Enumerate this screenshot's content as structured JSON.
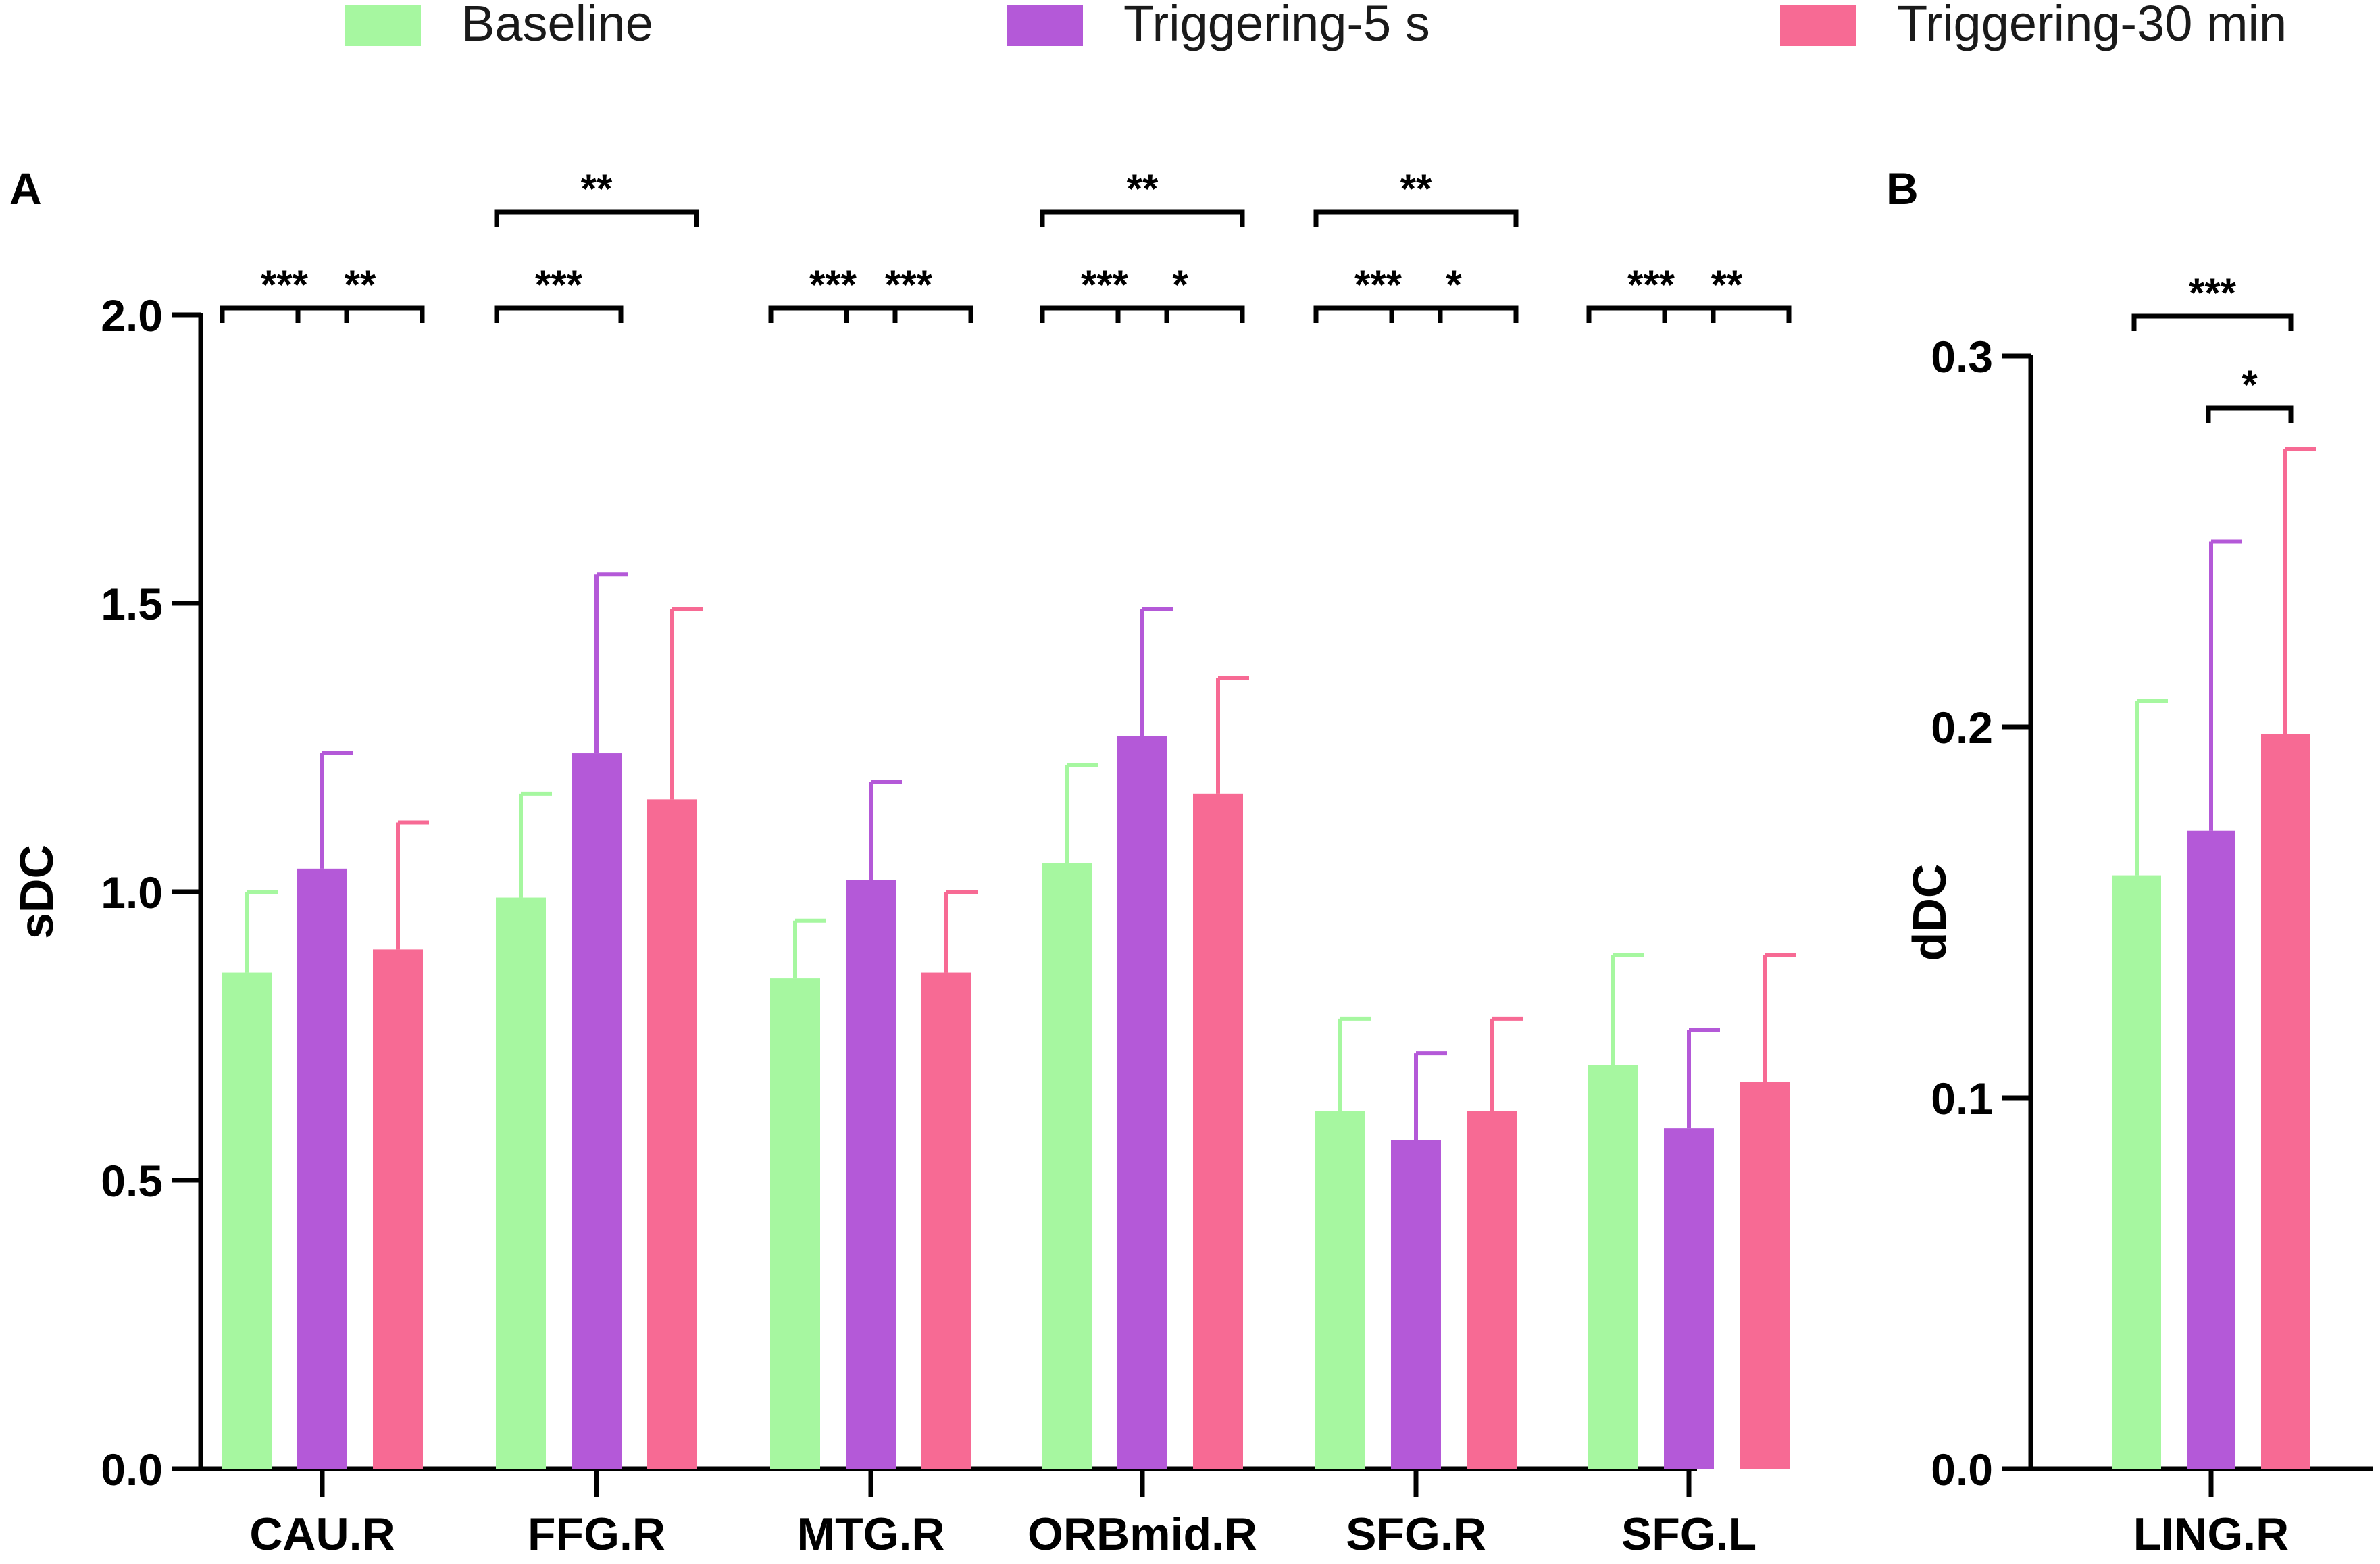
{
  "chart_data": [
    {
      "panel_label": "A",
      "type": "bar",
      "ylabel": "sDC",
      "xlabel": "",
      "ylim": [
        0,
        2.0
      ],
      "yticks": [
        0.0,
        0.5,
        1.0,
        1.5,
        2.0
      ],
      "ytick_labels": [
        "0.0",
        "0.5",
        "1.0",
        "1.5",
        "2.0"
      ],
      "categories": [
        "CAU.R",
        "FFG.R",
        "MTG.R",
        "ORBmid.R",
        "SFG.R",
        "SFG.L"
      ],
      "series": [
        {
          "name": "Baseline",
          "color": "#A6F7A0",
          "values": [
            0.86,
            0.99,
            0.85,
            1.05,
            0.62,
            0.7
          ],
          "errors": [
            0.14,
            0.18,
            0.1,
            0.17,
            0.16,
            0.19
          ]
        },
        {
          "name": "Triggering-5 s",
          "color": "#B459D8",
          "values": [
            1.04,
            1.24,
            1.02,
            1.27,
            0.57,
            0.59
          ],
          "errors": [
            0.2,
            0.31,
            0.17,
            0.22,
            0.15,
            0.17
          ]
        },
        {
          "name": "Triggering-30 min",
          "color": "#F76A94",
          "values": [
            0.9,
            1.16,
            0.86,
            1.17,
            0.62,
            0.67
          ],
          "errors": [
            0.22,
            0.33,
            0.14,
            0.2,
            0.16,
            0.22
          ]
        }
      ],
      "significance": [
        {
          "category": 0,
          "from": 0,
          "to": 1,
          "label": "***",
          "level": 0
        },
        {
          "category": 0,
          "from": 1,
          "to": 2,
          "label": "**",
          "level": 0
        },
        {
          "category": 1,
          "from": 0,
          "to": 1,
          "label": "***",
          "level": 0
        },
        {
          "category": 1,
          "from": 0,
          "to": 2,
          "label": "**",
          "level": 1
        },
        {
          "category": 2,
          "from": 0,
          "to": 1,
          "label": "***",
          "level": 0
        },
        {
          "category": 2,
          "from": 1,
          "to": 2,
          "label": "***",
          "level": 0
        },
        {
          "category": 3,
          "from": 0,
          "to": 1,
          "label": "***",
          "level": 0
        },
        {
          "category": 3,
          "from": 1,
          "to": 2,
          "label": "*",
          "level": 0
        },
        {
          "category": 3,
          "from": 0,
          "to": 2,
          "label": "**",
          "level": 1
        },
        {
          "category": 4,
          "from": 0,
          "to": 1,
          "label": "***",
          "level": 0
        },
        {
          "category": 4,
          "from": 1,
          "to": 2,
          "label": "*",
          "level": 0
        },
        {
          "category": 4,
          "from": 0,
          "to": 2,
          "label": "**",
          "level": 1
        },
        {
          "category": 5,
          "from": 0,
          "to": 1,
          "label": "***",
          "level": 0
        },
        {
          "category": 5,
          "from": 1,
          "to": 2,
          "label": "**",
          "level": 0
        }
      ]
    },
    {
      "panel_label": "B",
      "type": "bar",
      "ylabel": "dDC",
      "xlabel": "",
      "ylim": [
        0,
        0.3
      ],
      "yticks": [
        0.0,
        0.1,
        0.2,
        0.3
      ],
      "ytick_labels": [
        "0.0",
        "0.1",
        "0.2",
        "0.3"
      ],
      "categories": [
        "LING.R"
      ],
      "series": [
        {
          "name": "Baseline",
          "color": "#A6F7A0",
          "values": [
            0.16
          ],
          "errors": [
            0.047
          ]
        },
        {
          "name": "Triggering-5 s",
          "color": "#B459D8",
          "values": [
            0.172
          ],
          "errors": [
            0.078
          ]
        },
        {
          "name": "Triggering-30 min",
          "color": "#F76A94",
          "values": [
            0.198
          ],
          "errors": [
            0.077
          ]
        }
      ],
      "significance": [
        {
          "category": 0,
          "from": 0,
          "to": 2,
          "label": "***",
          "level": 1
        },
        {
          "category": 0,
          "from": 1,
          "to": 2,
          "label": "*",
          "level": 0
        }
      ]
    }
  ],
  "legend": [
    {
      "label": "Baseline",
      "color": "#A6F7A0"
    },
    {
      "label": "Triggering-5 s",
      "color": "#B459D8"
    },
    {
      "label": "Triggering-30 min",
      "color": "#F76A94"
    }
  ]
}
